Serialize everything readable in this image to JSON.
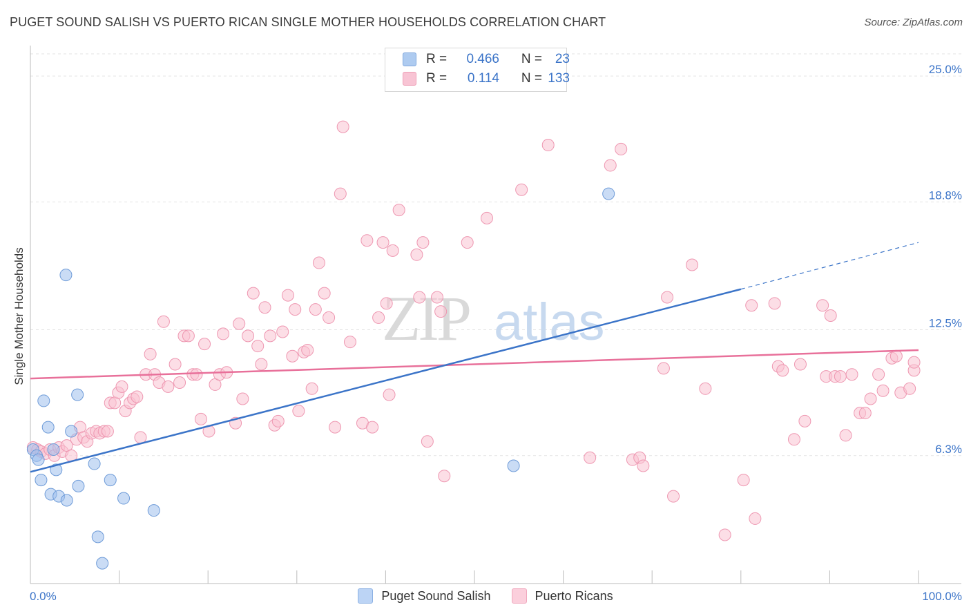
{
  "header": {
    "title": "PUGET SOUND SALISH VS PUERTO RICAN SINGLE MOTHER HOUSEHOLDS CORRELATION CHART",
    "source": "Source: ZipAtlas.com"
  },
  "watermark": {
    "zip": "ZIP",
    "atlas": "atlas"
  },
  "legend_stats": [
    {
      "r_label": "R =",
      "r_value": "0.466",
      "n_label": "N =",
      "n_value": "23",
      "color": "#aecbf0",
      "border": "#7fa7dd"
    },
    {
      "r_label": "R =",
      "r_value": "0.114",
      "n_label": "N =",
      "n_value": "133",
      "color": "#f8c4d4",
      "border": "#ee9db5"
    }
  ],
  "legend_bottom": [
    {
      "label": "Puget Sound Salish",
      "color": "#bcd4f5",
      "border": "#8ab0e3"
    },
    {
      "label": "Puerto Ricans",
      "color": "#fbcfdc",
      "border": "#f0a7bd"
    }
  ],
  "chart_data": {
    "type": "scatter",
    "title": "PUGET SOUND SALISH VS PUERTO RICAN SINGLE MOTHER HOUSEHOLDS CORRELATION CHART",
    "xlabel": "",
    "ylabel": "Single Mother Households",
    "xlim": [
      0,
      100
    ],
    "ylim": [
      0,
      26.5
    ],
    "x_tick_labels": [
      "0.0%",
      "100.0%"
    ],
    "y_ticks": [
      6.3,
      12.5,
      18.8,
      25.0
    ],
    "y_tick_labels": [
      "6.3%",
      "12.5%",
      "18.8%",
      "25.0%"
    ],
    "grid": true,
    "colors": {
      "blue": "#3b74c8",
      "pink": "#e8709a",
      "grid": "#e3e3e3",
      "axis": "#bbbbbb"
    },
    "series": [
      {
        "name": "Puget Sound Salish",
        "color": "#9fc0ec",
        "stroke": "#6e9bd8",
        "points": [
          [
            0.3,
            6.6
          ],
          [
            0.7,
            6.3
          ],
          [
            0.9,
            6.1
          ],
          [
            1.5,
            9.0
          ],
          [
            1.2,
            5.1
          ],
          [
            2.0,
            7.7
          ],
          [
            4.0,
            15.2
          ],
          [
            2.3,
            4.4
          ],
          [
            2.6,
            6.6
          ],
          [
            2.9,
            5.6
          ],
          [
            3.2,
            4.3
          ],
          [
            4.1,
            4.1
          ],
          [
            5.3,
            9.3
          ],
          [
            4.6,
            7.5
          ],
          [
            5.4,
            4.8
          ],
          [
            7.2,
            5.9
          ],
          [
            7.6,
            2.3
          ],
          [
            9.0,
            5.1
          ],
          [
            8.1,
            1.0
          ],
          [
            10.5,
            4.2
          ],
          [
            13.9,
            3.6
          ],
          [
            54.4,
            5.8
          ],
          [
            65.1,
            19.2
          ]
        ],
        "trend": {
          "x0": 0,
          "y0": 5.5,
          "x1": 80,
          "y1": 14.5,
          "dash_to_x": 100,
          "dash_to_y": 16.8
        }
      },
      {
        "name": "Puerto Ricans",
        "color": "#f9c2d2",
        "stroke": "#ee97b1",
        "points": [
          [
            0.3,
            6.7
          ],
          [
            0.8,
            6.6
          ],
          [
            1.2,
            6.5
          ],
          [
            1.7,
            6.4
          ],
          [
            2.2,
            6.6
          ],
          [
            2.7,
            6.3
          ],
          [
            3.2,
            6.7
          ],
          [
            3.6,
            6.5
          ],
          [
            4.1,
            6.8
          ],
          [
            4.6,
            6.3
          ],
          [
            5.2,
            7.1
          ],
          [
            5.6,
            7.7
          ],
          [
            6.0,
            7.2
          ],
          [
            6.4,
            7.0
          ],
          [
            6.9,
            7.4
          ],
          [
            7.4,
            7.5
          ],
          [
            7.8,
            7.4
          ],
          [
            8.3,
            7.5
          ],
          [
            8.7,
            7.5
          ],
          [
            9.0,
            8.9
          ],
          [
            9.5,
            8.9
          ],
          [
            9.9,
            9.4
          ],
          [
            10.3,
            9.7
          ],
          [
            10.7,
            8.5
          ],
          [
            11.2,
            8.9
          ],
          [
            11.6,
            9.1
          ],
          [
            12.0,
            9.2
          ],
          [
            12.4,
            7.2
          ],
          [
            13.0,
            10.3
          ],
          [
            13.5,
            11.3
          ],
          [
            14.0,
            10.3
          ],
          [
            14.5,
            9.9
          ],
          [
            15.0,
            12.9
          ],
          [
            15.5,
            9.7
          ],
          [
            16.3,
            10.8
          ],
          [
            16.8,
            9.9
          ],
          [
            17.3,
            12.2
          ],
          [
            17.8,
            12.2
          ],
          [
            18.3,
            10.3
          ],
          [
            18.7,
            10.3
          ],
          [
            19.2,
            8.1
          ],
          [
            19.6,
            11.8
          ],
          [
            20.1,
            7.5
          ],
          [
            20.8,
            9.8
          ],
          [
            21.3,
            10.3
          ],
          [
            21.7,
            12.3
          ],
          [
            22.1,
            10.4
          ],
          [
            23.1,
            7.9
          ],
          [
            23.5,
            12.8
          ],
          [
            23.9,
            9.1
          ],
          [
            24.5,
            12.2
          ],
          [
            25.1,
            14.3
          ],
          [
            25.6,
            11.7
          ],
          [
            26.0,
            10.8
          ],
          [
            26.4,
            13.6
          ],
          [
            27.0,
            12.2
          ],
          [
            27.5,
            7.8
          ],
          [
            27.9,
            8.0
          ],
          [
            28.4,
            12.4
          ],
          [
            29.0,
            14.2
          ],
          [
            29.5,
            11.2
          ],
          [
            29.8,
            13.5
          ],
          [
            30.2,
            8.5
          ],
          [
            30.8,
            11.4
          ],
          [
            31.2,
            11.5
          ],
          [
            31.7,
            9.6
          ],
          [
            32.1,
            13.5
          ],
          [
            32.5,
            15.8
          ],
          [
            33.1,
            14.3
          ],
          [
            33.6,
            13.1
          ],
          [
            34.3,
            7.7
          ],
          [
            34.9,
            19.2
          ],
          [
            35.2,
            22.5
          ],
          [
            36.0,
            11.9
          ],
          [
            37.4,
            7.9
          ],
          [
            37.9,
            16.9
          ],
          [
            38.5,
            7.7
          ],
          [
            39.2,
            13.1
          ],
          [
            39.7,
            16.8
          ],
          [
            40.1,
            13.8
          ],
          [
            40.4,
            9.3
          ],
          [
            40.8,
            16.4
          ],
          [
            41.5,
            18.4
          ],
          [
            43.5,
            16.2
          ],
          [
            43.8,
            14.1
          ],
          [
            44.2,
            16.8
          ],
          [
            44.7,
            7.0
          ],
          [
            45.8,
            14.1
          ],
          [
            46.2,
            13.4
          ],
          [
            46.6,
            5.3
          ],
          [
            49.2,
            16.8
          ],
          [
            51.4,
            18.0
          ],
          [
            55.3,
            19.4
          ],
          [
            58.3,
            21.6
          ],
          [
            63.0,
            6.2
          ],
          [
            65.3,
            20.6
          ],
          [
            66.5,
            21.4
          ],
          [
            67.8,
            6.1
          ],
          [
            68.6,
            6.2
          ],
          [
            69.0,
            5.8
          ],
          [
            71.3,
            10.6
          ],
          [
            71.7,
            14.1
          ],
          [
            72.4,
            4.3
          ],
          [
            74.5,
            15.7
          ],
          [
            76.0,
            9.6
          ],
          [
            78.2,
            2.4
          ],
          [
            80.3,
            5.1
          ],
          [
            81.2,
            13.7
          ],
          [
            81.6,
            3.2
          ],
          [
            83.8,
            13.8
          ],
          [
            84.2,
            10.7
          ],
          [
            84.7,
            10.5
          ],
          [
            86.0,
            7.1
          ],
          [
            86.7,
            10.8
          ],
          [
            87.2,
            8.0
          ],
          [
            89.2,
            13.7
          ],
          [
            89.6,
            10.2
          ],
          [
            90.1,
            13.2
          ],
          [
            90.6,
            10.2
          ],
          [
            91.2,
            10.2
          ],
          [
            91.8,
            7.3
          ],
          [
            92.5,
            10.3
          ],
          [
            93.4,
            8.4
          ],
          [
            94.0,
            8.4
          ],
          [
            94.6,
            9.1
          ],
          [
            95.5,
            10.3
          ],
          [
            96.0,
            9.5
          ],
          [
            97.0,
            11.1
          ],
          [
            97.5,
            11.2
          ],
          [
            98.0,
            9.4
          ],
          [
            99.5,
            10.5
          ],
          [
            99.0,
            9.6
          ],
          [
            99.5,
            10.9
          ]
        ],
        "trend": {
          "x0": 0,
          "y0": 10.1,
          "x1": 100,
          "y1": 11.5
        }
      }
    ]
  }
}
